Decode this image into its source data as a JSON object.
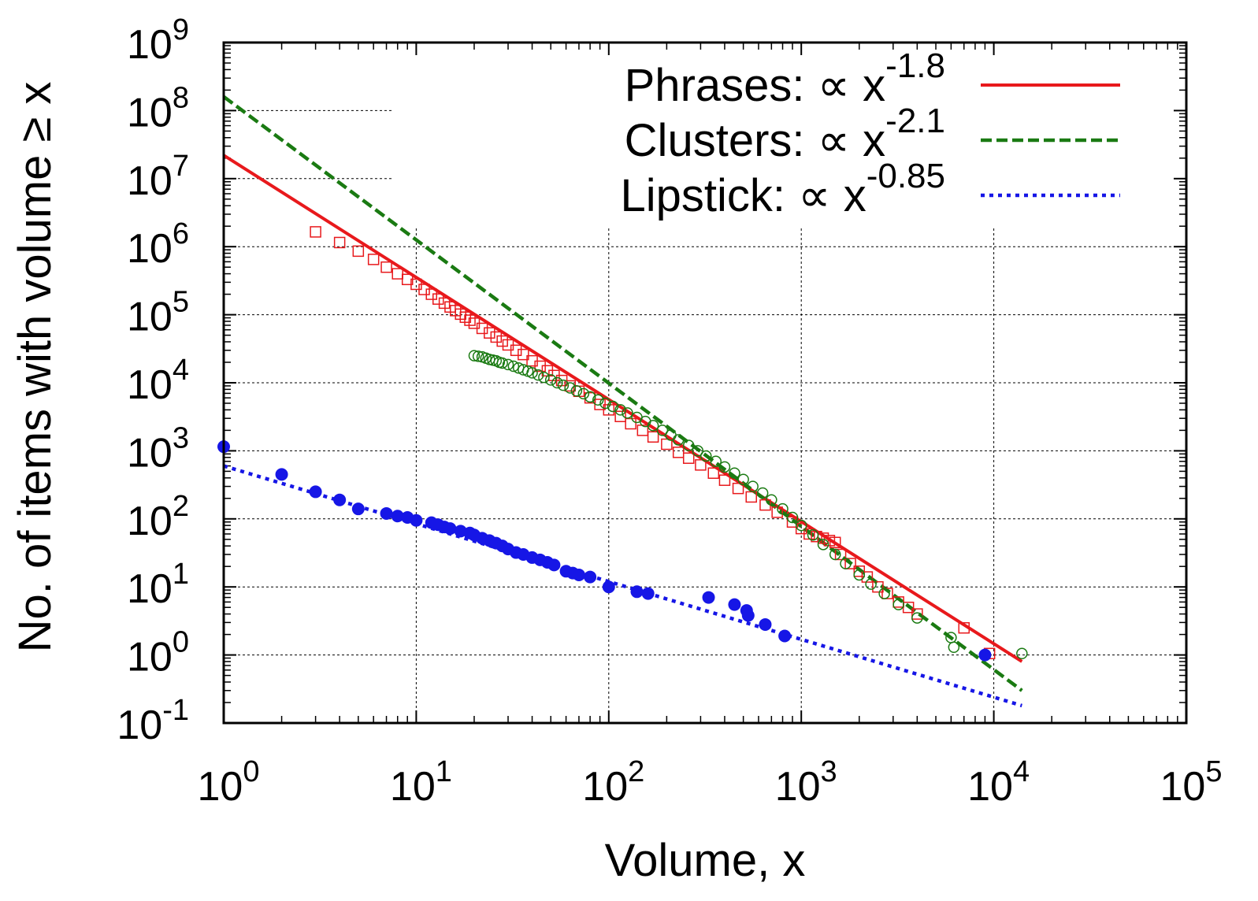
{
  "chart_data": {
    "type": "scatter",
    "xscale": "log",
    "yscale": "log",
    "xlim": [
      1,
      100000
    ],
    "ylim": [
      0.1,
      1000000000
    ],
    "grid": true,
    "legend_position": "top-right",
    "xlabel": "Volume, x",
    "ylabel": "No. of items with volume ≥ x",
    "x_ticks": [
      {
        "base": "10",
        "exp": "0"
      },
      {
        "base": "10",
        "exp": "1"
      },
      {
        "base": "10",
        "exp": "2"
      },
      {
        "base": "10",
        "exp": "3"
      },
      {
        "base": "10",
        "exp": "4"
      },
      {
        "base": "10",
        "exp": "5"
      }
    ],
    "y_ticks": [
      {
        "base": "10",
        "exp": "-1"
      },
      {
        "base": "10",
        "exp": "0"
      },
      {
        "base": "10",
        "exp": "1"
      },
      {
        "base": "10",
        "exp": "2"
      },
      {
        "base": "10",
        "exp": "3"
      },
      {
        "base": "10",
        "exp": "4"
      },
      {
        "base": "10",
        "exp": "5"
      },
      {
        "base": "10",
        "exp": "6"
      },
      {
        "base": "10",
        "exp": "7"
      },
      {
        "base": "10",
        "exp": "8"
      },
      {
        "base": "10",
        "exp": "9"
      }
    ],
    "fit_lines": [
      {
        "label_prefix": "Phrases: ∝ x",
        "label_exp": "-1.8",
        "color": "#e8191c",
        "style": "solid",
        "slope": -1.8,
        "x": [
          1,
          14000
        ],
        "y": [
          22000000,
          0.8
        ]
      },
      {
        "label_prefix": "Clusters: ∝ x",
        "label_exp": "-2.1",
        "color": "#1a7a12",
        "style": "dashed",
        "slope": -2.1,
        "x": [
          1,
          14000
        ],
        "y": [
          160000000,
          0.3
        ]
      },
      {
        "label_prefix": "Lipstick: ∝ x",
        "label_exp": "-0.85",
        "color": "#1616e6",
        "style": "dotted",
        "slope": -0.85,
        "x": [
          1,
          14000
        ],
        "y": [
          600,
          0.18
        ]
      }
    ],
    "series": [
      {
        "marker": "open-square",
        "color": "#e8191c",
        "x": [
          3,
          4,
          5,
          6,
          7,
          8,
          9,
          10,
          11,
          12,
          13,
          14,
          15,
          16,
          17,
          18,
          19,
          20,
          22,
          24,
          26,
          28,
          30,
          33,
          36,
          40,
          44,
          48,
          52,
          57,
          63,
          70,
          80,
          90,
          100,
          115,
          130,
          150,
          170,
          200,
          230,
          260,
          300,
          350,
          400,
          470,
          550,
          650,
          750,
          900,
          1000,
          1100,
          1200,
          1300,
          1400,
          1500,
          1600,
          1800,
          2000,
          2200,
          2500,
          2800,
          3200,
          3600,
          4000,
          7000,
          9500
        ],
        "y": [
          1650000,
          1150000,
          860000,
          650000,
          500000,
          400000,
          330000,
          280000,
          235000,
          200000,
          170000,
          148000,
          130000,
          115000,
          102000,
          92000,
          83000,
          75000,
          63000,
          54000,
          47000,
          41000,
          36000,
          30000,
          26000,
          21000,
          17500,
          15000,
          12800,
          10800,
          9000,
          7500,
          6000,
          4800,
          4000,
          3200,
          2500,
          2000,
          1600,
          1250,
          950,
          780,
          620,
          470,
          370,
          280,
          210,
          160,
          125,
          90,
          72,
          60,
          55,
          52,
          48,
          45,
          30,
          22,
          17,
          14,
          10,
          8,
          6,
          5,
          4,
          2.5,
          1.05
        ]
      },
      {
        "marker": "open-circle",
        "color": "#1a7a12",
        "x": [
          20,
          21,
          22,
          23,
          24,
          25,
          26,
          27,
          28,
          30,
          32,
          34,
          36,
          38,
          40,
          43,
          46,
          50,
          54,
          58,
          63,
          68,
          74,
          80,
          88,
          96,
          105,
          115,
          125,
          140,
          155,
          170,
          190,
          210,
          230,
          260,
          290,
          320,
          360,
          400,
          450,
          500,
          560,
          630,
          700,
          800,
          900,
          1000,
          1150,
          1300,
          1500,
          1700,
          2000,
          2300,
          2700,
          3200,
          4000,
          6000,
          6200,
          14000
        ],
        "y": [
          25000,
          24500,
          24000,
          23000,
          22000,
          21500,
          21000,
          20000,
          19500,
          18500,
          17500,
          16500,
          15500,
          14800,
          14000,
          13000,
          12000,
          11000,
          10000,
          9200,
          8400,
          7600,
          6900,
          6200,
          5600,
          5000,
          4500,
          4000,
          3600,
          3100,
          2700,
          2350,
          2000,
          1700,
          1450,
          1200,
          1000,
          840,
          700,
          580,
          470,
          380,
          300,
          240,
          190,
          140,
          105,
          80,
          58,
          42,
          30,
          22,
          15,
          11,
          8,
          5.5,
          3.5,
          1.8,
          1.3,
          1.05
        ]
      },
      {
        "marker": "filled-circle",
        "color": "#1616e6",
        "x": [
          1,
          2,
          3,
          4,
          5,
          7,
          8,
          9,
          10,
          12,
          13,
          14,
          15,
          17,
          19,
          20,
          22,
          24,
          26,
          28,
          30,
          33,
          36,
          40,
          44,
          48,
          52,
          60,
          65,
          70,
          80,
          100,
          140,
          160,
          330,
          450,
          520,
          530,
          650,
          820,
          9000
        ],
        "y": [
          1150,
          450,
          250,
          190,
          140,
          120,
          110,
          105,
          95,
          88,
          82,
          76,
          72,
          66,
          62,
          58,
          52,
          48,
          44,
          40,
          36,
          32,
          30,
          27,
          25,
          23,
          21,
          17,
          16,
          15,
          14,
          10,
          8.5,
          8,
          7,
          5.5,
          4.5,
          3.8,
          2.8,
          1.9,
          1.0
        ]
      }
    ]
  }
}
